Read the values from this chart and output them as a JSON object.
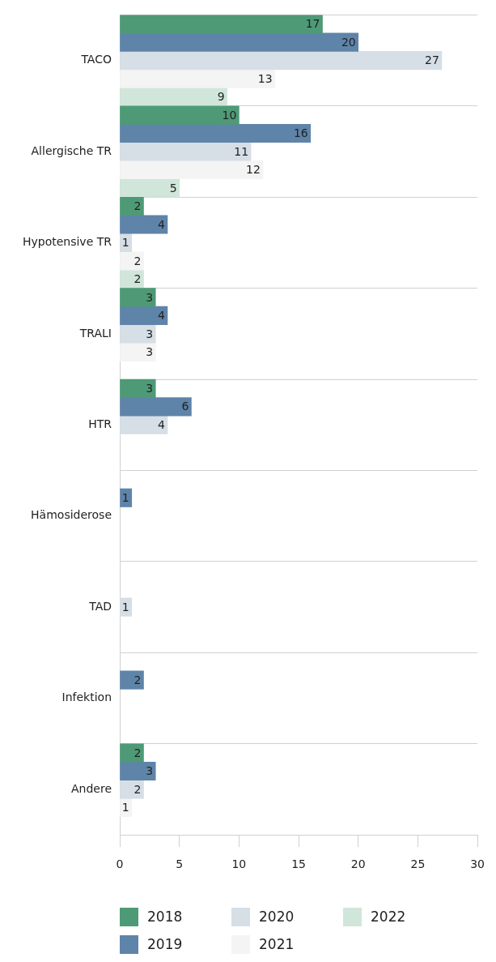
{
  "chart_data": {
    "type": "bar",
    "orientation": "horizontal",
    "categories": [
      "TACO",
      "Allergische TR",
      "Hypotensive TR",
      "TRALI",
      "HTR",
      "Hämosiderose",
      "TAD",
      "Infektion",
      "Andere"
    ],
    "series": [
      {
        "name": "2018",
        "color": "#4e9a76",
        "values": [
          17,
          10,
          2,
          3,
          3,
          null,
          null,
          null,
          2
        ]
      },
      {
        "name": "2019",
        "color": "#5f84a9",
        "values": [
          20,
          16,
          4,
          4,
          6,
          1,
          null,
          2,
          3
        ]
      },
      {
        "name": "2020",
        "color": "#d6dee6",
        "values": [
          27,
          11,
          1,
          3,
          4,
          null,
          1,
          null,
          2
        ]
      },
      {
        "name": "2021",
        "color": "#f4f4f4",
        "values": [
          13,
          12,
          2,
          3,
          null,
          null,
          null,
          null,
          1
        ]
      },
      {
        "name": "2022",
        "color": "#d0e6da",
        "values": [
          9,
          5,
          2,
          null,
          null,
          null,
          null,
          null,
          null
        ]
      }
    ],
    "xlim": [
      0,
      30
    ],
    "xticks": [
      0,
      5,
      10,
      15,
      20,
      25,
      30
    ],
    "grid": "y",
    "data_labels": true,
    "legend": "bottom"
  }
}
